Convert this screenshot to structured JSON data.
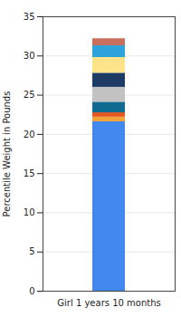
{
  "chart_data": {
    "type": "bar",
    "stacked": true,
    "categories": [
      "Girl 1 years 10 months"
    ],
    "ylabel": "Percentile Weight in Pounds",
    "series": [
      {
        "color": "#4189ef",
        "values": [
          21.6
        ]
      },
      {
        "color": "#f4a33a",
        "values": [
          0.6
        ]
      },
      {
        "color": "#e4561f",
        "values": [
          0.55
        ]
      },
      {
        "color": "#0f6b8f",
        "values": [
          1.35
        ]
      },
      {
        "color": "#c2c2c2",
        "values": [
          1.9
        ]
      },
      {
        "color": "#1e3b66",
        "values": [
          1.8
        ]
      },
      {
        "color": "#fde48a",
        "values": [
          2.0
        ]
      },
      {
        "color": "#2da3dc",
        "values": [
          1.5
        ]
      },
      {
        "color": "#c86f5d",
        "values": [
          0.9
        ]
      }
    ],
    "ylim": [
      0,
      35
    ],
    "yticks": [
      0,
      5,
      10,
      15,
      20,
      25,
      30,
      35
    ],
    "grid": true
  }
}
